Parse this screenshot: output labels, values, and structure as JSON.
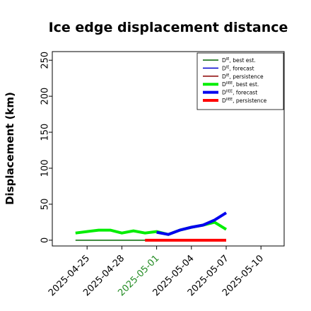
{
  "chart_data": {
    "type": "line",
    "title": "Ice edge displacement distance",
    "xlabel": "",
    "ylabel": "Displacement (km)",
    "xlim": [
      "2025-04-22",
      "2025-05-12"
    ],
    "ylim": [
      -8,
      262
    ],
    "yticks": [
      0,
      50,
      100,
      150,
      200,
      250
    ],
    "xticks": [
      {
        "date": "2025-04-25",
        "label": "2025-04-25",
        "color": "#000000"
      },
      {
        "date": "2025-04-28",
        "label": "2025-04-28",
        "color": "#000000"
      },
      {
        "date": "2025-05-01",
        "label": "2025-05-01",
        "color": "#228b22"
      },
      {
        "date": "2025-05-04",
        "label": "2025-05-04",
        "color": "#000000"
      },
      {
        "date": "2025-05-07",
        "label": "2025-05-07",
        "color": "#000000"
      },
      {
        "date": "2025-05-10",
        "label": "2025-05-10",
        "color": "#000000"
      }
    ],
    "grid": false,
    "legend_position": "top-right",
    "series": [
      {
        "name": "D",
        "sup": "IE",
        "suffix": ", best est.",
        "color": "#006400",
        "width": 1.5,
        "x": [
          "2025-04-24",
          "2025-04-25",
          "2025-04-26",
          "2025-04-27",
          "2025-04-28",
          "2025-04-29",
          "2025-04-30",
          "2025-05-01"
        ],
        "y": [
          0,
          0,
          0,
          0,
          0,
          0,
          0,
          0
        ]
      },
      {
        "name": "D",
        "sup": "IE",
        "suffix": ", forecast",
        "color": "#0000cd",
        "width": 1.5,
        "x": [
          "2025-05-01",
          "2025-05-02",
          "2025-05-03",
          "2025-05-04",
          "2025-05-05",
          "2025-05-06",
          "2025-05-07"
        ],
        "y": [
          0,
          0,
          0,
          0,
          0,
          0,
          0
        ]
      },
      {
        "name": "D",
        "sup": "IE",
        "suffix": ", persistence",
        "color": "#8b0000",
        "width": 1.5,
        "x": [
          "2025-05-01",
          "2025-05-02",
          "2025-05-03",
          "2025-05-04",
          "2025-05-05",
          "2025-05-06",
          "2025-05-07"
        ],
        "y": [
          0,
          0,
          0,
          0,
          0,
          0,
          0
        ]
      },
      {
        "name": "D",
        "sup": "IIEE",
        "suffix": ", best est.",
        "color": "#00ee00",
        "width": 4,
        "x": [
          "2025-04-24",
          "2025-04-25",
          "2025-04-26",
          "2025-04-27",
          "2025-04-28",
          "2025-04-29",
          "2025-04-30",
          "2025-05-01",
          "2025-05-02",
          "2025-05-03",
          "2025-05-04",
          "2025-05-05",
          "2025-05-06",
          "2025-05-07"
        ],
        "y": [
          10,
          12,
          14,
          14,
          10,
          13,
          10,
          12,
          8,
          14,
          18,
          21,
          25,
          15
        ]
      },
      {
        "name": "D",
        "sup": "IIEE",
        "suffix": ", forecast",
        "color": "#0000ee",
        "width": 4,
        "x": [
          "2025-05-01",
          "2025-05-02",
          "2025-05-03",
          "2025-05-04",
          "2025-05-05",
          "2025-05-06",
          "2025-05-07"
        ],
        "y": [
          11,
          8,
          14,
          18,
          21,
          28,
          38
        ]
      },
      {
        "name": "D",
        "sup": "IIEE",
        "suffix": ", persistence",
        "color": "#ff0000",
        "width": 4,
        "x": [
          "2025-04-30",
          "2025-05-01",
          "2025-05-02",
          "2025-05-03",
          "2025-05-04",
          "2025-05-05",
          "2025-05-06",
          "2025-05-07"
        ],
        "y": [
          0,
          0,
          0,
          0,
          0,
          0,
          0,
          0
        ]
      }
    ]
  }
}
